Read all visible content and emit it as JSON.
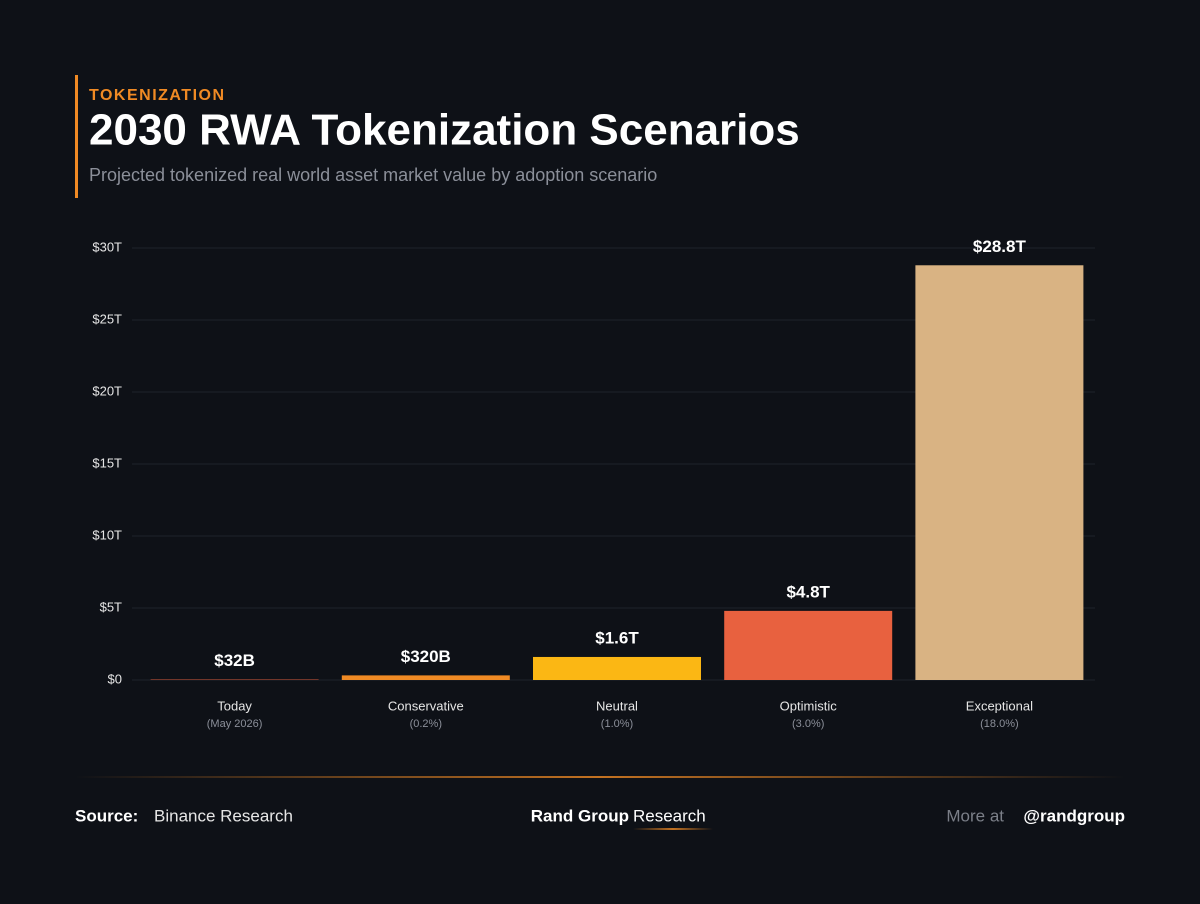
{
  "kicker": "TOKENIZATION",
  "chart_data": {
    "type": "bar",
    "title": "2030 RWA Tokenization Scenarios",
    "subtitle": "Projected tokenized real world asset market value by adoption scenario",
    "categories": [
      "Today",
      "Conservative",
      "Neutral",
      "Optimistic",
      "Exceptional"
    ],
    "category_notes": [
      "(May 2026)",
      "(0.2%)",
      "(1.0%)",
      "(3.0%)",
      "(18.0%)"
    ],
    "values": [
      0.032,
      0.32,
      1.6,
      4.8,
      28.8
    ],
    "value_labels": [
      "$32B",
      "$320B",
      "$1.6T",
      "$4.8T",
      "$28.8T"
    ],
    "colors": [
      "#e8623f",
      "#f08a24",
      "#fbb714",
      "#e8613f",
      "#d9b383"
    ],
    "ylim": [
      0,
      30
    ],
    "yticks": [
      {
        "value": 0,
        "label": "$0"
      },
      {
        "value": 5,
        "label": "$5T"
      },
      {
        "value": 10,
        "label": "$10T"
      },
      {
        "value": 15,
        "label": "$15T"
      },
      {
        "value": 20,
        "label": "$20T"
      },
      {
        "value": 25,
        "label": "$25T"
      },
      {
        "value": 30,
        "label": "$30T"
      }
    ],
    "grid": true
  },
  "footer": {
    "source_label": "Source:",
    "source": "Binance Research",
    "brand": "Rand Group",
    "brand_suffix": "Research",
    "more_label": "More at",
    "handle": "@randgroup"
  }
}
